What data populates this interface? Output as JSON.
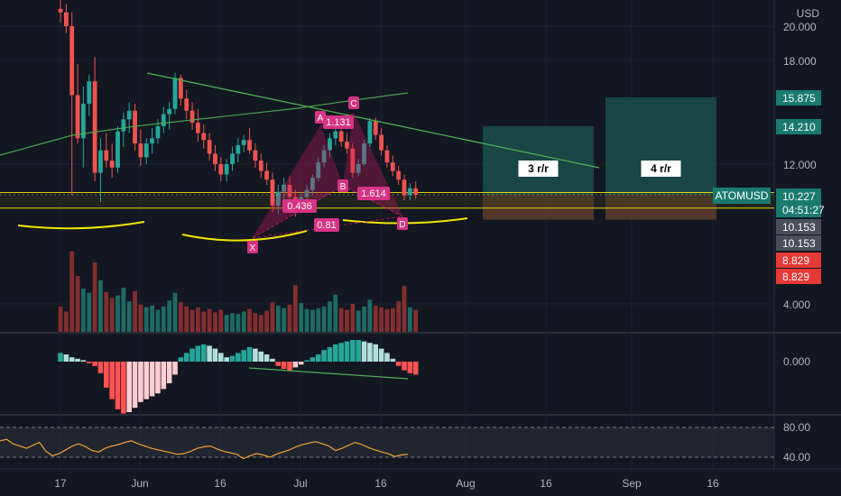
{
  "symbol": "ATOMUSD",
  "currency": "USD",
  "countdown": "04:51:27",
  "colors": {
    "bg": "#131722",
    "up": "#26a69a",
    "down": "#ef5350",
    "grid": "#1e222d",
    "axis_text": "#b2b5be",
    "pattern": "#c2185b",
    "trend": "#4caf50",
    "support": "#f3e600",
    "price_line": "#ffe0b2",
    "tp_zone": "#1b4d4a",
    "sl_zone": "#5a3a2e"
  },
  "price_axis": {
    "ticks": [
      "20.000",
      "18.000",
      "12.000",
      "4.000"
    ],
    "oscillator_ticks": [
      "0.000"
    ],
    "rsi_ticks": [
      "80.00",
      "40.00"
    ]
  },
  "price_badges": [
    {
      "label": "15.875",
      "color": "#1a7a6e",
      "value": 15.875
    },
    {
      "label": "14.210",
      "color": "#1a7a6e",
      "value": 14.21
    },
    {
      "label": "10.227",
      "color": "#1a7a6e",
      "value": 10.227
    },
    {
      "label": "10.153",
      "color": "#4a4e58",
      "value": 10.153
    },
    {
      "label": "10.153",
      "color": "#4a4e58",
      "value": 10.153
    },
    {
      "label": "8.829",
      "color": "#e53935",
      "value": 8.829
    },
    {
      "label": "8.829",
      "color": "#e53935",
      "value": 8.829
    }
  ],
  "time_axis": [
    "17",
    "Jun",
    "16",
    "Jul",
    "16",
    "Aug",
    "16",
    "Sep",
    "16"
  ],
  "pattern": {
    "points": [
      {
        "label": "X",
        "value": 8.95
      },
      {
        "label": "A",
        "value": 14.0
      },
      {
        "label": "B",
        "value": 11.2
      },
      {
        "label": "C",
        "value": 14.6
      },
      {
        "label": "D",
        "value": 9.9
      }
    ],
    "ratios": [
      "0.436",
      "1.131",
      "1.614",
      "0.81"
    ]
  },
  "trades": [
    {
      "label": "3 r/r",
      "target": 14.21
    },
    {
      "label": "4 r/r",
      "target": 15.875
    }
  ],
  "chart_data": {
    "type": "candlestick",
    "title": "",
    "ylabel": "USD",
    "ylim": [
      3.5,
      21.0
    ],
    "candles": [
      [
        21.0,
        21.6,
        20.2,
        20.8
      ],
      [
        20.8,
        21.3,
        19.6,
        20.0
      ],
      [
        20.0,
        20.8,
        10.2,
        16.0
      ],
      [
        16.0,
        17.8,
        13.2,
        13.5
      ],
      [
        13.5,
        16.5,
        11.8,
        15.5
      ],
      [
        15.5,
        17.2,
        14.8,
        16.8
      ],
      [
        16.8,
        18.2,
        11.0,
        11.5
      ],
      [
        11.5,
        13.5,
        9.8,
        12.8
      ],
      [
        12.8,
        13.8,
        11.8,
        12.2
      ],
      [
        12.2,
        13.2,
        11.2,
        11.8
      ],
      [
        11.8,
        14.2,
        11.5,
        13.9
      ],
      [
        13.9,
        15.0,
        13.0,
        14.6
      ],
      [
        14.6,
        15.6,
        13.8,
        15.1
      ],
      [
        15.1,
        15.5,
        12.8,
        13.2
      ],
      [
        13.2,
        14.0,
        11.9,
        12.4
      ],
      [
        12.4,
        13.5,
        12.0,
        13.2
      ],
      [
        13.2,
        14.1,
        12.6,
        13.5
      ],
      [
        13.5,
        14.6,
        13.2,
        14.2
      ],
      [
        14.2,
        15.3,
        13.8,
        14.9
      ],
      [
        14.9,
        15.6,
        14.0,
        15.2
      ],
      [
        15.2,
        17.3,
        14.9,
        17.0
      ],
      [
        17.0,
        17.2,
        15.4,
        15.8
      ],
      [
        15.8,
        16.3,
        14.6,
        15.1
      ],
      [
        15.1,
        15.6,
        14.0,
        14.4
      ],
      [
        14.4,
        15.2,
        13.3,
        13.8
      ],
      [
        13.8,
        14.3,
        12.9,
        13.4
      ],
      [
        13.4,
        13.8,
        12.2,
        12.6
      ],
      [
        12.6,
        13.1,
        11.6,
        12.0
      ],
      [
        12.0,
        12.4,
        11.0,
        11.4
      ],
      [
        11.4,
        12.3,
        11.0,
        12.0
      ],
      [
        12.0,
        13.0,
        11.6,
        12.6
      ],
      [
        12.6,
        13.5,
        12.1,
        13.1
      ],
      [
        13.1,
        13.7,
        12.7,
        13.4
      ],
      [
        13.4,
        14.1,
        12.6,
        12.8
      ],
      [
        12.8,
        13.2,
        11.8,
        12.2
      ],
      [
        12.2,
        12.6,
        11.2,
        11.6
      ],
      [
        11.6,
        12.1,
        10.8,
        11.1
      ],
      [
        11.1,
        11.5,
        9.2,
        9.6
      ],
      [
        9.6,
        10.8,
        9.1,
        10.4
      ],
      [
        10.4,
        11.2,
        9.9,
        10.8
      ],
      [
        10.8,
        11.3,
        9.8,
        10.1
      ],
      [
        10.1,
        10.5,
        8.95,
        9.4
      ],
      [
        9.4,
        10.4,
        9.2,
        10.1
      ],
      [
        10.1,
        10.8,
        9.8,
        10.5
      ],
      [
        10.5,
        11.4,
        10.2,
        11.2
      ],
      [
        11.2,
        12.4,
        11.0,
        12.1
      ],
      [
        12.1,
        13.1,
        11.8,
        12.8
      ],
      [
        12.8,
        13.8,
        12.4,
        13.5
      ],
      [
        13.5,
        14.3,
        13.1,
        13.9
      ],
      [
        13.9,
        14.2,
        13.0,
        13.3
      ],
      [
        13.3,
        13.8,
        12.6,
        12.9
      ],
      [
        12.9,
        13.2,
        11.2,
        11.5
      ],
      [
        11.5,
        12.3,
        11.3,
        12.0
      ],
      [
        12.0,
        13.4,
        11.9,
        13.2
      ],
      [
        13.2,
        14.7,
        13.0,
        14.5
      ],
      [
        14.5,
        14.7,
        13.4,
        13.7
      ],
      [
        13.7,
        14.1,
        12.5,
        12.8
      ],
      [
        12.8,
        13.1,
        11.8,
        12.1
      ],
      [
        12.1,
        12.5,
        11.3,
        11.6
      ],
      [
        11.6,
        11.9,
        10.8,
        11.1
      ],
      [
        11.1,
        11.4,
        9.9,
        10.2
      ],
      [
        10.2,
        10.9,
        9.9,
        10.6
      ],
      [
        10.6,
        11.0,
        10.0,
        10.227
      ]
    ],
    "volume": [
      3.0,
      2.4,
      9.5,
      6.6,
      5.1,
      4.6,
      8.2,
      6.1,
      4.7,
      4.0,
      4.3,
      5.2,
      3.6,
      4.8,
      3.2,
      2.9,
      3.1,
      2.6,
      3.0,
      3.7,
      4.6,
      3.5,
      3.0,
      2.6,
      2.9,
      2.4,
      2.7,
      2.3,
      2.6,
      2.0,
      2.2,
      2.1,
      2.4,
      2.7,
      2.2,
      2.0,
      2.5,
      3.5,
      3.1,
      2.8,
      3.2,
      5.5,
      3.4,
      2.7,
      2.6,
      2.8,
      3.0,
      3.6,
      4.4,
      2.8,
      2.6,
      3.3,
      2.5,
      3.0,
      3.8,
      3.1,
      2.9,
      2.7,
      2.8,
      3.6,
      5.4,
      2.9,
      2.6
    ],
    "oscillator": [
      0.6,
      0.5,
      0.3,
      0.2,
      0.1,
      -0.1,
      -0.3,
      -0.8,
      -1.8,
      -2.6,
      -3.3,
      -3.6,
      -3.5,
      -3.2,
      -2.8,
      -2.6,
      -2.4,
      -2.2,
      -1.9,
      -1.5,
      -0.9,
      0.3,
      0.6,
      0.9,
      1.1,
      1.2,
      1.1,
      0.9,
      0.6,
      0.3,
      0.4,
      0.6,
      0.8,
      1.0,
      0.9,
      0.7,
      0.5,
      0.2,
      -0.3,
      -0.5,
      -0.6,
      -0.4,
      -0.2,
      0.1,
      0.3,
      0.5,
      0.8,
      1.0,
      1.2,
      1.3,
      1.4,
      1.5,
      1.5,
      1.4,
      1.3,
      1.2,
      0.9,
      0.6,
      0.2,
      -0.3,
      -0.6,
      -0.8,
      -0.9
    ],
    "rsi": [
      62,
      64,
      58,
      55,
      52,
      56,
      60,
      48,
      42,
      45,
      50,
      55,
      58,
      54,
      49,
      47,
      52,
      55,
      57,
      60,
      62,
      58,
      55,
      52,
      50,
      48,
      46,
      44,
      45,
      48,
      52,
      54,
      55,
      51,
      48,
      46,
      44,
      38,
      42,
      45,
      43,
      40,
      44,
      47,
      50,
      54,
      57,
      59,
      61,
      58,
      55,
      49,
      52,
      56,
      60,
      57,
      53,
      50,
      47,
      45,
      41,
      43,
      44
    ]
  }
}
